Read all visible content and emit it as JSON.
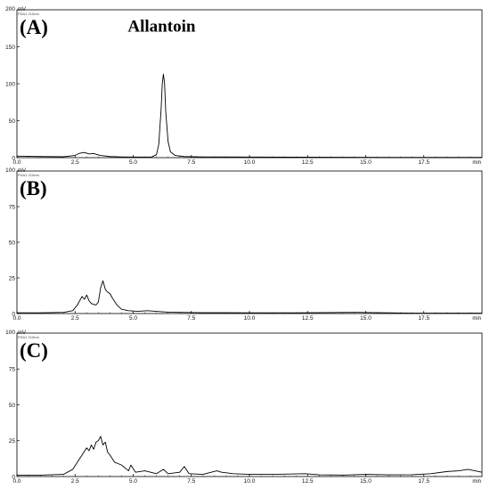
{
  "chart_data": [
    {
      "type": "line",
      "panel_label": "(A)",
      "detector": "PDA1 210nm",
      "y_unit": "mV",
      "x_unit": "min",
      "xlim": [
        0,
        20
      ],
      "ylim": [
        0,
        200
      ],
      "xticks": [
        "0.0",
        "2.5",
        "5.0",
        "7.5",
        "10.0",
        "12.5",
        "15.0",
        "17.5"
      ],
      "yticks": [
        "0",
        "50",
        "100",
        "150",
        "200"
      ],
      "annotations": [
        {
          "text": "Allantoin",
          "x": 6.3,
          "y": 110
        }
      ],
      "series": [
        {
          "x": [
            0,
            1,
            2,
            2.5,
            2.7,
            2.9,
            3.1,
            3.3,
            3.6,
            4,
            4.5,
            5,
            5.5,
            5.8,
            6.0,
            6.1,
            6.2,
            6.25,
            6.3,
            6.35,
            6.4,
            6.5,
            6.6,
            6.8,
            7.2,
            8,
            10,
            12,
            14,
            16,
            18,
            20
          ],
          "values": [
            2,
            1.5,
            1.2,
            3,
            6,
            7,
            5,
            5.5,
            3,
            1.5,
            1,
            0.8,
            0.8,
            1,
            4,
            18,
            65,
            100,
            113,
            100,
            62,
            22,
            8,
            3,
            1.5,
            1,
            0.8,
            0.6,
            0.5,
            0.4,
            0.3,
            0.3
          ]
        }
      ]
    },
    {
      "type": "line",
      "panel_label": "(B)",
      "detector": "PDA1 210nm",
      "y_unit": "mV",
      "x_unit": "min",
      "xlim": [
        0,
        20
      ],
      "ylim": [
        0,
        100
      ],
      "xticks": [
        "0.0",
        "2.5",
        "5.0",
        "7.5",
        "10.0",
        "12.5",
        "15.0",
        "17.5"
      ],
      "yticks": [
        "0",
        "25",
        "50",
        "75",
        "100"
      ],
      "series": [
        {
          "x": [
            0,
            1,
            2,
            2.4,
            2.6,
            2.8,
            2.9,
            3.0,
            3.1,
            3.2,
            3.4,
            3.5,
            3.6,
            3.7,
            3.8,
            3.9,
            4.0,
            4.1,
            4.3,
            4.5,
            4.8,
            5.2,
            5.6,
            6.0,
            6.5,
            7,
            8,
            10,
            12,
            14.6,
            17,
            20
          ],
          "values": [
            0.5,
            0.5,
            0.8,
            2,
            6,
            12,
            10,
            13,
            9,
            7,
            6,
            8,
            18,
            23,
            17,
            15,
            14,
            11,
            6,
            3,
            2,
            1.5,
            2,
            1.5,
            1,
            0.8,
            0.6,
            0.5,
            0.5,
            0.8,
            0.3,
            0.3
          ]
        }
      ]
    },
    {
      "type": "line",
      "panel_label": "(C)",
      "detector": "PDA1 210nm",
      "y_unit": "mV",
      "x_unit": "min",
      "xlim": [
        0,
        20
      ],
      "ylim": [
        0,
        100
      ],
      "xticks": [
        "0.0",
        "2.5",
        "5.0",
        "7.5",
        "10.0",
        "12.5",
        "15.0",
        "17.5"
      ],
      "yticks": [
        "0",
        "25",
        "50",
        "75",
        "100"
      ],
      "series": [
        {
          "x": [
            0,
            1,
            2,
            2.4,
            2.6,
            2.8,
            3.0,
            3.1,
            3.2,
            3.3,
            3.4,
            3.5,
            3.6,
            3.7,
            3.8,
            3.9,
            4.0,
            4.2,
            4.5,
            4.8,
            4.9,
            5.1,
            5.5,
            6.0,
            6.3,
            6.5,
            7.0,
            7.2,
            7.4,
            8,
            8.6,
            8.8,
            9.3,
            10,
            11,
            12.4,
            13,
            14,
            15,
            16,
            17,
            17.8,
            18.5,
            19,
            19.4,
            19.7,
            20
          ],
          "values": [
            1,
            1,
            1.5,
            5,
            10,
            15,
            20,
            18,
            22,
            19,
            24,
            25,
            28,
            22,
            24,
            17,
            15,
            10,
            8,
            4,
            8,
            3,
            4,
            2,
            5,
            2,
            3,
            7,
            2,
            1.5,
            4,
            3,
            2,
            1.5,
            1.5,
            2,
            1.2,
            1,
            1.5,
            1.2,
            1.3,
            2,
            3.5,
            4,
            5,
            4,
            3
          ]
        }
      ]
    }
  ]
}
